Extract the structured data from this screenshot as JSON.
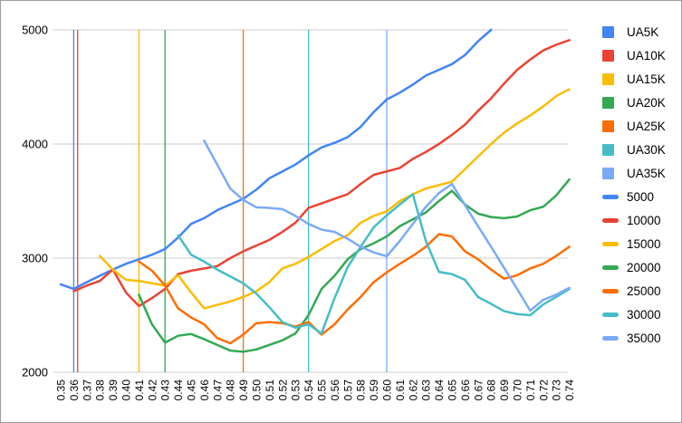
{
  "chart_data": {
    "type": "line",
    "title": "",
    "xlabel": "",
    "ylabel": "",
    "ylim": [
      2000,
      5000
    ],
    "y_ticks": [
      2000,
      3000,
      4000,
      5000
    ],
    "grid": "horizontal",
    "legend_position": "right",
    "x_categories": [
      "0.35",
      "0.36",
      "0.37",
      "0.38",
      "0.39",
      "0.40",
      "0.41",
      "0.42",
      "0.43",
      "0.44",
      "0.45",
      "0.46",
      "0.47",
      "0.48",
      "0.49",
      "0.50",
      "0.51",
      "0.52",
      "0.53",
      "0.54",
      "0.55",
      "0.56",
      "0.57",
      "0.58",
      "0.59",
      "0.60",
      "0.61",
      "0.62",
      "0.63",
      "0.64",
      "0.65",
      "0.66",
      "0.67",
      "0.68",
      "0.69",
      "0.70",
      "0.71",
      "0.72",
      "0.73",
      "0.74"
    ],
    "series": [
      {
        "name": "UA5K",
        "color": "#4285F4",
        "start_index": 0,
        "values": [
          2770,
          2730,
          2790,
          2845,
          2900,
          2950,
          2990,
          3030,
          3080,
          3180,
          3300,
          3350,
          3420,
          3470,
          3520,
          3600,
          3700,
          3760,
          3820,
          3900,
          3970,
          4010,
          4060,
          4150,
          4280,
          4390,
          4450,
          4520,
          4600,
          4650,
          4700,
          4780,
          4900,
          5000
        ]
      },
      {
        "name": "UA10K",
        "color": "#EA4335",
        "start_index": 1,
        "values": [
          2710,
          2760,
          2800,
          2900,
          2700,
          2580,
          2650,
          2730,
          2860,
          2890,
          2910,
          2930,
          3000,
          3060,
          3110,
          3160,
          3230,
          3310,
          3440,
          3480,
          3520,
          3560,
          3650,
          3730,
          3760,
          3790,
          3870,
          3930,
          4000,
          4080,
          4170,
          4290,
          4400,
          4530,
          4650,
          4740,
          4820,
          4870,
          4910
        ]
      },
      {
        "name": "UA15K",
        "color": "#FBBC04",
        "start_index": 3,
        "values": [
          3020,
          2900,
          2810,
          2800,
          2780,
          2760,
          2850,
          2700,
          2560,
          2590,
          2620,
          2660,
          2710,
          2790,
          2910,
          2950,
          3010,
          3080,
          3150,
          3200,
          3310,
          3370,
          3410,
          3500,
          3560,
          3610,
          3640,
          3670,
          3780,
          3890,
          4000,
          4100,
          4180,
          4250,
          4330,
          4420,
          4480
        ]
      },
      {
        "name": "UA20K",
        "color": "#34A853",
        "start_index": 6,
        "values": [
          2680,
          2420,
          2260,
          2320,
          2335,
          2290,
          2240,
          2190,
          2180,
          2200,
          2240,
          2280,
          2340,
          2500,
          2730,
          2845,
          2990,
          3080,
          3130,
          3190,
          3280,
          3340,
          3400,
          3500,
          3590,
          3470,
          3390,
          3360,
          3350,
          3365,
          3420,
          3450,
          3550,
          3690
        ]
      },
      {
        "name": "UA25K",
        "color": "#FF6D01",
        "start_index": 6,
        "values": [
          2970,
          2890,
          2760,
          2560,
          2480,
          2420,
          2300,
          2254,
          2330,
          2430,
          2440,
          2430,
          2400,
          2440,
          2330,
          2420,
          2550,
          2660,
          2790,
          2875,
          2950,
          3020,
          3100,
          3210,
          3190,
          3060,
          2990,
          2900,
          2820,
          2850,
          2910,
          2950,
          3020,
          3100
        ]
      },
      {
        "name": "UA30K",
        "color": "#46BDC6",
        "start_index": 9,
        "values": [
          3200,
          3030,
          2970,
          2900,
          2840,
          2780,
          2690,
          2570,
          2440,
          2390,
          2420,
          2340,
          2650,
          2920,
          3100,
          3270,
          3375,
          3470,
          3560,
          3150,
          2880,
          2860,
          2810,
          2660,
          2600,
          2535,
          2510,
          2500,
          2595,
          2660,
          2730
        ]
      },
      {
        "name": "UA35K",
        "color": "#7BAAF7",
        "start_index": 11,
        "values": [
          4030,
          3820,
          3610,
          3510,
          3445,
          3440,
          3430,
          3370,
          3300,
          3250,
          3230,
          3170,
          3100,
          3050,
          3016,
          3150,
          3300,
          3450,
          3570,
          3650,
          3465,
          3280,
          3100,
          2915,
          2730,
          2540,
          2635,
          2680,
          2740
        ]
      }
    ],
    "vertical_lines": [
      {
        "name": "5000",
        "color": "#4285F4",
        "x": 0.36
      },
      {
        "name": "10000",
        "color": "#EA4335",
        "x": 0.363
      },
      {
        "name": "15000",
        "color": "#FBBC04",
        "x": 0.41
      },
      {
        "name": "20000",
        "color": "#34A853",
        "x": 0.43
      },
      {
        "name": "25000",
        "color": "#FF6D01",
        "x": 0.49
      },
      {
        "name": "30000",
        "color": "#46BDC6",
        "x": 0.54
      },
      {
        "name": "35000",
        "color": "#7BAAF7",
        "x": 0.6
      }
    ]
  },
  "axis_text_color": "#000000",
  "gridline_color": "#cccccc"
}
